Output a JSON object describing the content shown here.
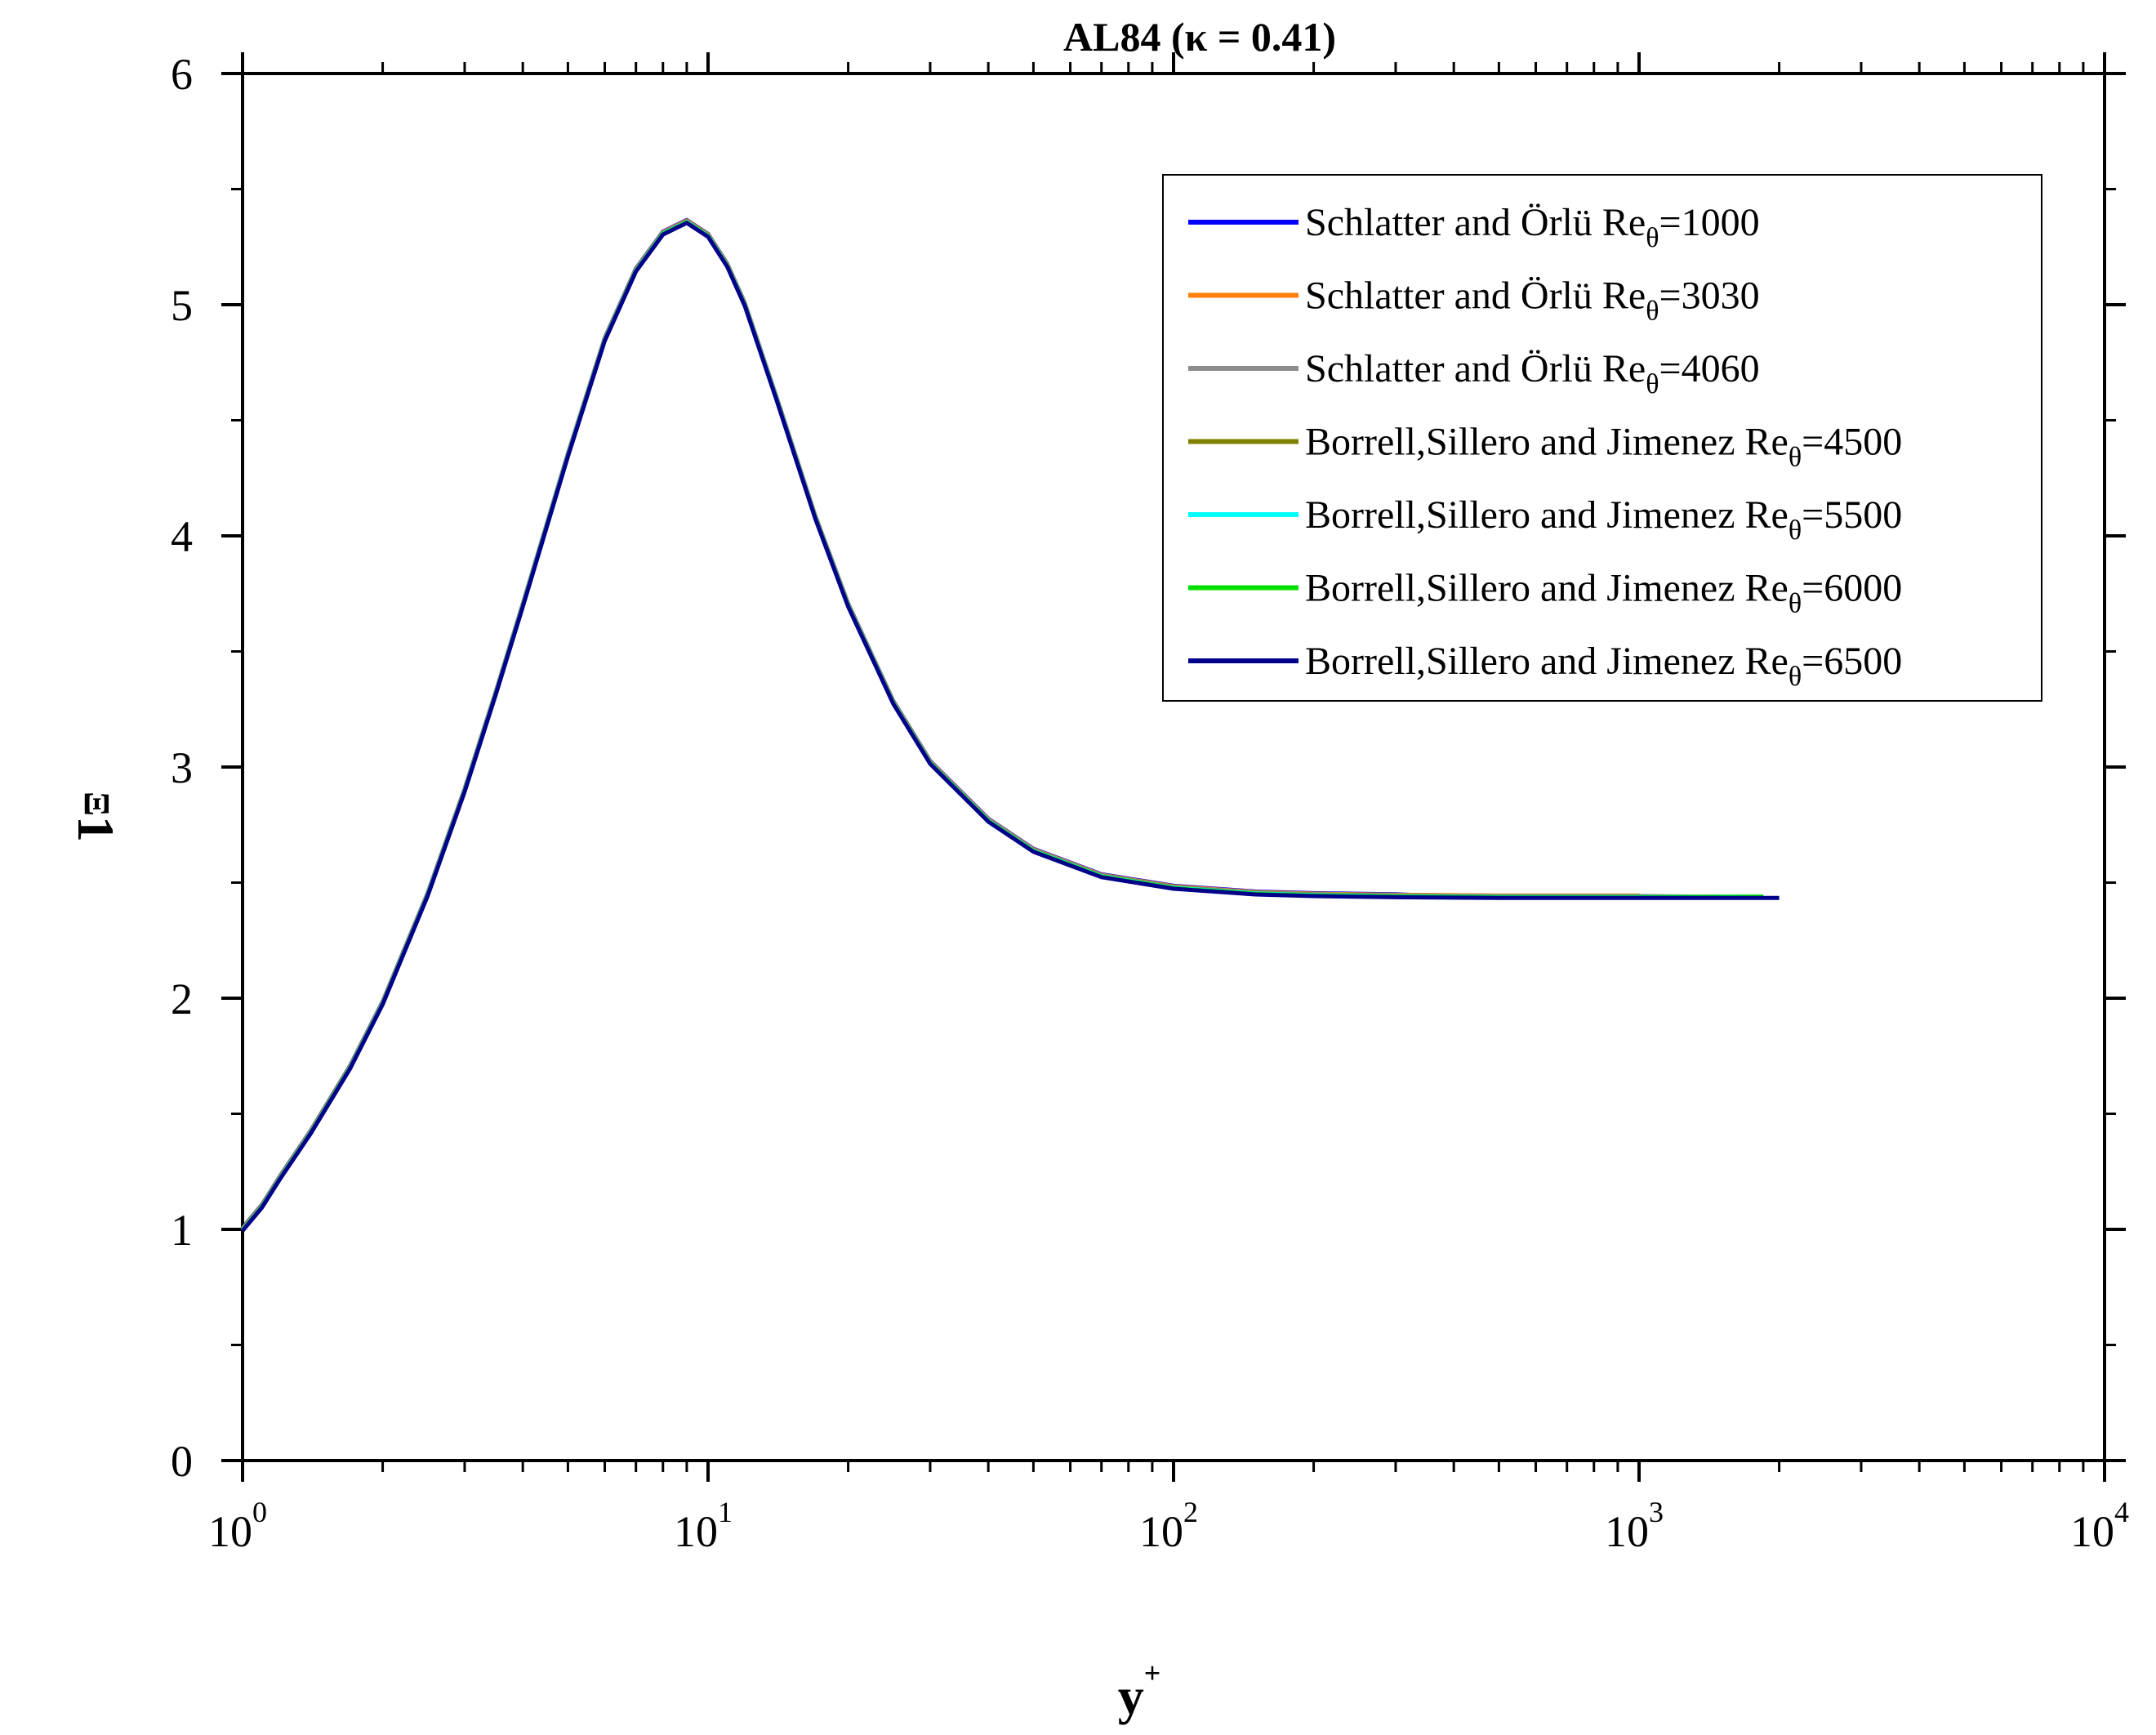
{
  "chart_data": {
    "type": "line",
    "title": "AL84 (κ = 0.41)",
    "xlabel": "y",
    "xlabel_sup": "+",
    "ylabel": "Ξ",
    "ylabel_sub": "1",
    "xscale": "log",
    "xlim": [
      1,
      10000
    ],
    "ylim": [
      0,
      6
    ],
    "x_ticks": [
      {
        "value": 1,
        "base": "10",
        "exp": "0"
      },
      {
        "value": 10,
        "base": "10",
        "exp": "1"
      },
      {
        "value": 100,
        "base": "10",
        "exp": "2"
      },
      {
        "value": 1000,
        "base": "10",
        "exp": "3"
      },
      {
        "value": 10000,
        "base": "10",
        "exp": "4"
      }
    ],
    "y_ticks": [
      "0",
      "1",
      "2",
      "3",
      "4",
      "5",
      "6"
    ],
    "legend_position": "top-right",
    "series": [
      {
        "name": "Schlatter and Örlü Re",
        "sub": "θ",
        "value": "=1000",
        "color": "#0000ff",
        "xmax": 360
      },
      {
        "name": "Schlatter and Örlü Re",
        "sub": "θ",
        "value": "=3030",
        "color": "#ff7f0e",
        "xmax": 1000
      },
      {
        "name": "Schlatter and Örlü Re",
        "sub": "θ",
        "value": "=4060",
        "color": "#8c8c8c",
        "xmax": 1300
      },
      {
        "name": "Borrell,Sillero and Jimenez Re",
        "sub": "θ",
        "value": "=4500",
        "color": "#808000",
        "xmax": 1500
      },
      {
        "name": "Borrell,Sillero and Jimenez Re",
        "sub": "θ",
        "value": "=5500",
        "color": "#00ffff",
        "xmax": 1700
      },
      {
        "name": "Borrell,Sillero and Jimenez Re",
        "sub": "θ",
        "value": "=6000",
        "color": "#00e000",
        "xmax": 1850
      },
      {
        "name": "Borrell,Sillero and Jimenez Re",
        "sub": "θ",
        "value": "=6500",
        "color": "#00008b",
        "xmax": 2000
      }
    ],
    "curve": {
      "x": [
        1,
        1.1,
        1.2,
        1.4,
        1.7,
        2,
        2.5,
        3,
        3.5,
        4,
        5,
        6,
        7,
        8,
        9,
        10,
        11,
        12,
        14,
        17,
        20,
        25,
        30,
        40,
        50,
        70,
        100,
        150,
        200,
        300,
        500,
        1000,
        2000
      ],
      "y": [
        1.0,
        1.1,
        1.22,
        1.42,
        1.7,
        1.98,
        2.45,
        2.9,
        3.32,
        3.7,
        4.35,
        4.85,
        5.15,
        5.31,
        5.36,
        5.3,
        5.17,
        5.0,
        4.6,
        4.08,
        3.7,
        3.28,
        3.02,
        2.77,
        2.64,
        2.53,
        2.48,
        2.455,
        2.448,
        2.443,
        2.44,
        2.44,
        2.44
      ]
    }
  }
}
